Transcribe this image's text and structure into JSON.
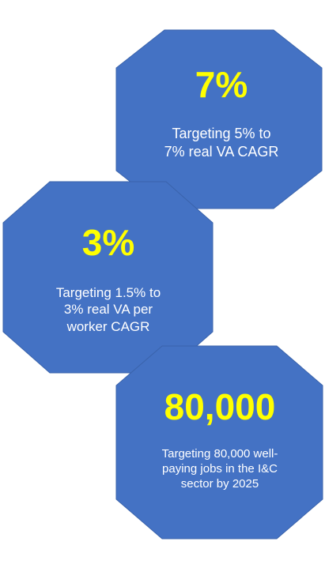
{
  "colors": {
    "hexagon_fill": "#4472c4",
    "hexagon_stroke": "#3a63ab",
    "value_text": "#ffff00",
    "desc_text": "#ffffff"
  },
  "hexagons": [
    {
      "value": "7%",
      "description": "Targeting 5% to\n7% real VA CAGR"
    },
    {
      "value": "3%",
      "description": "Targeting 1.5% to\n3% real VA per\nworker CAGR"
    },
    {
      "value": "80,000",
      "description": "Targeting 80,000 well-\npaying jobs in the I&C\nsector by 2025"
    }
  ]
}
